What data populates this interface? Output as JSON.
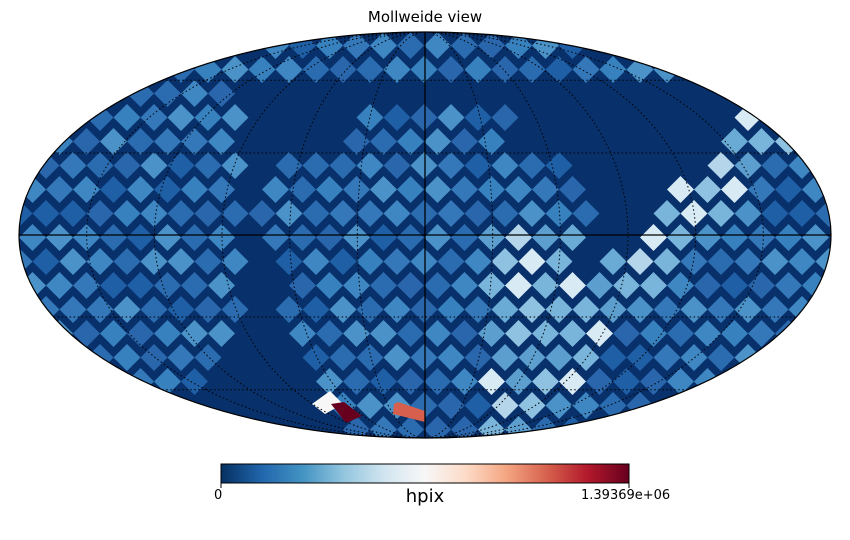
{
  "title": "Mollweide view",
  "projection": "mollweide",
  "graticule": true,
  "colormap": {
    "name": "RdBu_r",
    "stops": [
      "#053061",
      "#2166ac",
      "#4393c3",
      "#92c5de",
      "#d1e5f0",
      "#f7f7f7",
      "#fddbc7",
      "#f4a582",
      "#d6604d",
      "#b2182b",
      "#67001f"
    ]
  },
  "colorbar": {
    "label": "hpix",
    "min_label": "0",
    "max_label": "1.39369e+06",
    "min": 0,
    "max": 1393690
  },
  "background_value_fraction": 0.0,
  "hot_pixels": [
    {
      "value_fraction": 0.5,
      "description": "white"
    },
    {
      "value_fraction": 1.0,
      "description": "dark red"
    },
    {
      "value_fraction": 0.8,
      "description": "red"
    }
  ]
}
